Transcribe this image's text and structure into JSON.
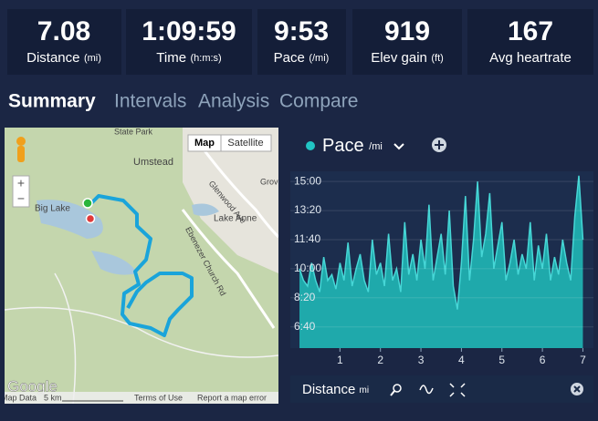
{
  "stats": [
    {
      "value": "7.08",
      "label": "Distance",
      "unit": "(mi)"
    },
    {
      "value": "1:09:59",
      "label": "Time",
      "unit": "(h:m:s)"
    },
    {
      "value": "9:53",
      "label": "Pace",
      "unit": "(/mi)"
    },
    {
      "value": "919",
      "label": "Elev gain",
      "unit": "(ft)"
    },
    {
      "value": "167",
      "label": "Avg heartrate"
    }
  ],
  "tabs": [
    "Summary",
    "Intervals",
    "Analysis",
    "Compare"
  ],
  "map": {
    "buttons": [
      "Map",
      "Satellite"
    ],
    "zoom": [
      "+",
      "−"
    ],
    "places": [
      "State Park",
      "Umstead",
      "Big Lake",
      "Lake Anne",
      "Glenwood Ave",
      "Ebenezer Church Rd",
      "Grove"
    ],
    "attribution": "Google",
    "footer": [
      "Map Data",
      "5 km",
      "Terms of Use",
      "Report a map error"
    ]
  },
  "chart_data": {
    "type": "area",
    "title": "Pace",
    "unit": "/mi",
    "x_label": "Distance",
    "x_unit": "mi",
    "x": [
      0,
      0.1,
      0.2,
      0.3,
      0.4,
      0.5,
      0.6,
      0.7,
      0.8,
      0.9,
      1,
      1.1,
      1.2,
      1.3,
      1.4,
      1.5,
      1.6,
      1.7,
      1.8,
      1.9,
      2,
      2.1,
      2.2,
      2.3,
      2.4,
      2.5,
      2.6,
      2.7,
      2.8,
      2.9,
      3,
      3.1,
      3.2,
      3.3,
      3.4,
      3.5,
      3.6,
      3.7,
      3.8,
      3.9,
      4,
      4.1,
      4.2,
      4.3,
      4.4,
      4.5,
      4.6,
      4.7,
      4.8,
      4.9,
      5,
      5.1,
      5.2,
      5.3,
      5.4,
      5.5,
      5.6,
      5.7,
      5.8,
      5.9,
      6,
      6.1,
      6.2,
      6.3,
      6.4,
      6.5,
      6.6,
      6.7,
      6.8,
      6.9,
      7
    ],
    "values": [
      600,
      560,
      540,
      620,
      560,
      520,
      640,
      560,
      580,
      530,
      620,
      560,
      690,
      540,
      600,
      650,
      560,
      520,
      700,
      580,
      620,
      540,
      720,
      560,
      600,
      520,
      760,
      580,
      650,
      560,
      700,
      600,
      820,
      560,
      640,
      720,
      580,
      800,
      540,
      460,
      620,
      850,
      560,
      700,
      900,
      640,
      720,
      860,
      600,
      680,
      760,
      560,
      620,
      700,
      580,
      650,
      600,
      760,
      560,
      680,
      600,
      720,
      560,
      640,
      580,
      700,
      620,
      560,
      780,
      920,
      700
    ],
    "xlim": [
      0,
      7.08
    ],
    "xticks": [
      1,
      2,
      3,
      4,
      5,
      6,
      7
    ],
    "ylim": [
      327,
      935
    ],
    "yticks": [
      {
        "value": 400,
        "label": "6:40"
      },
      {
        "value": 500,
        "label": "8:20"
      },
      {
        "value": 600,
        "label": "10:00"
      },
      {
        "value": 700,
        "label": "11:40"
      },
      {
        "value": 800,
        "label": "13:20"
      },
      {
        "value": 900,
        "label": "15:00"
      }
    ],
    "color": "#1fa9ab",
    "line_color": "#46d6d6"
  }
}
